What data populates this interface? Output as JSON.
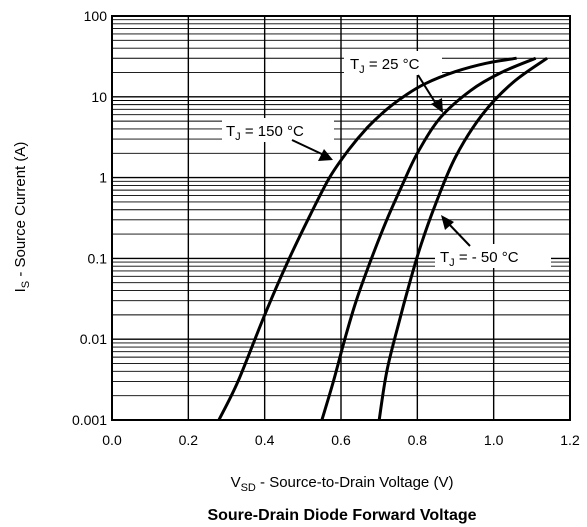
{
  "chart_data": {
    "type": "line",
    "title": "Soure-Drain Diode Forward Voltage",
    "xlabel": {
      "main": "V",
      "sub": "SD",
      "rest": " - Source-to-Drain Voltage (V)"
    },
    "ylabel": {
      "main": "I",
      "sub": "S",
      "rest": " - Source Current (A)"
    },
    "x_ticks": [
      "0.0",
      "0.2",
      "0.4",
      "0.6",
      "0.8",
      "1.0",
      "1.2"
    ],
    "y_ticks": [
      "0.001",
      "0.01",
      "0.1",
      "1",
      "10",
      "100"
    ],
    "xlim": [
      0.0,
      1.2
    ],
    "ylim": [
      0.001,
      100
    ],
    "y_scale": "log",
    "grid": true,
    "series": [
      {
        "name": "TJ = 150 °C",
        "x": [
          0.28,
          0.33,
          0.4,
          0.46,
          0.52,
          0.57,
          0.62,
          0.67,
          0.72,
          0.77,
          0.82,
          0.9,
          0.98,
          1.06
        ],
        "y": [
          0.001,
          0.003,
          0.02,
          0.09,
          0.35,
          1.0,
          2.2,
          4.2,
          7.0,
          10.5,
          14.5,
          20.5,
          26.0,
          30.0
        ]
      },
      {
        "name": "TJ = 25 °C",
        "x": [
          0.55,
          0.58,
          0.61,
          0.64,
          0.68,
          0.72,
          0.76,
          0.8,
          0.86,
          0.94,
          1.02,
          1.11
        ],
        "y": [
          0.001,
          0.003,
          0.01,
          0.03,
          0.1,
          0.3,
          0.8,
          2.0,
          5.5,
          12.0,
          20.0,
          30.0
        ]
      },
      {
        "name": "TJ = - 50 °C",
        "x": [
          0.7,
          0.72,
          0.75,
          0.78,
          0.81,
          0.85,
          0.9,
          0.97,
          1.05,
          1.14
        ],
        "y": [
          0.001,
          0.004,
          0.015,
          0.05,
          0.15,
          0.5,
          1.8,
          6.0,
          15.0,
          30.0
        ]
      }
    ],
    "annotations": [
      {
        "main": "T",
        "sub": "J",
        "rest": " = 25 °C"
      },
      {
        "main": "T",
        "sub": "J",
        "rest": " = 150 °C"
      },
      {
        "main": "T",
        "sub": "J",
        "rest": " = - 50 °C"
      }
    ]
  }
}
